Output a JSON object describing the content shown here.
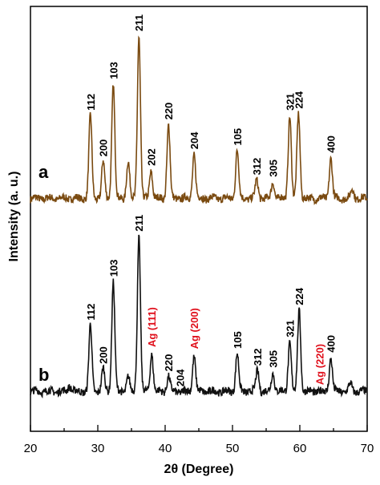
{
  "chart_data": {
    "type": "line",
    "title": "",
    "xlabel": "2θ (Degree)",
    "ylabel": "Intensity (a. u.)",
    "xlim": [
      20,
      70
    ],
    "x_ticks": [
      "20",
      "30",
      "40",
      "50",
      "60",
      "70"
    ],
    "y_ticks_shown": false,
    "legend": "none",
    "series": [
      {
        "name": "a",
        "color": "#7a4a10",
        "baseline": 0.12,
        "peaks": [
          {
            "x": 28.9,
            "h": 0.45
          },
          {
            "x": 30.8,
            "h": 0.2
          },
          {
            "x": 32.3,
            "h": 0.62
          },
          {
            "x": 34.5,
            "h": 0.2
          },
          {
            "x": 36.1,
            "h": 0.88
          },
          {
            "x": 37.9,
            "h": 0.15
          },
          {
            "x": 40.5,
            "h": 0.4
          },
          {
            "x": 44.3,
            "h": 0.24
          },
          {
            "x": 50.7,
            "h": 0.26
          },
          {
            "x": 53.6,
            "h": 0.1
          },
          {
            "x": 56.0,
            "h": 0.09
          },
          {
            "x": 58.5,
            "h": 0.45
          },
          {
            "x": 59.8,
            "h": 0.46
          },
          {
            "x": 64.6,
            "h": 0.22
          },
          {
            "x": 67.8,
            "h": 0.05
          }
        ],
        "peak_labels": [
          {
            "text": "112",
            "x": 28.9
          },
          {
            "text": "200",
            "x": 30.8
          },
          {
            "text": "103",
            "x": 32.3
          },
          {
            "text": "211",
            "x": 36.1
          },
          {
            "text": "202",
            "x": 37.9
          },
          {
            "text": "220",
            "x": 40.5
          },
          {
            "text": "204",
            "x": 44.3
          },
          {
            "text": "105",
            "x": 50.7
          },
          {
            "text": "312",
            "x": 53.6
          },
          {
            "text": "305",
            "x": 56.0
          },
          {
            "text": "321",
            "x": 58.5
          },
          {
            "text": "224",
            "x": 59.8
          },
          {
            "text": "400",
            "x": 64.6
          }
        ]
      },
      {
        "name": "b",
        "color": "#111111",
        "baseline": 0.05,
        "peaks": [
          {
            "x": 25.8,
            "h": 0.03
          },
          {
            "x": 28.9,
            "h": 0.35
          },
          {
            "x": 30.8,
            "h": 0.12
          },
          {
            "x": 32.3,
            "h": 0.58
          },
          {
            "x": 34.5,
            "h": 0.08
          },
          {
            "x": 36.1,
            "h": 0.82
          },
          {
            "x": 38.0,
            "h": 0.2
          },
          {
            "x": 40.5,
            "h": 0.08
          },
          {
            "x": 44.3,
            "h": 0.19
          },
          {
            "x": 50.7,
            "h": 0.2
          },
          {
            "x": 53.7,
            "h": 0.11
          },
          {
            "x": 56.0,
            "h": 0.1
          },
          {
            "x": 58.5,
            "h": 0.26
          },
          {
            "x": 59.9,
            "h": 0.43
          },
          {
            "x": 64.6,
            "h": 0.18
          },
          {
            "x": 67.5,
            "h": 0.04
          }
        ],
        "peak_labels": [
          {
            "text": "112",
            "x": 28.9,
            "color": "#000000"
          },
          {
            "text": "200",
            "x": 30.8,
            "color": "#000000"
          },
          {
            "text": "103",
            "x": 32.3,
            "color": "#000000"
          },
          {
            "text": "211",
            "x": 36.1,
            "color": "#000000"
          },
          {
            "text": "Ag (111)",
            "x": 38.0,
            "color": "#e0101c"
          },
          {
            "text": "220",
            "x": 40.5,
            "color": "#000000"
          },
          {
            "text": "204",
            "x": 42.2,
            "color": "#000000"
          },
          {
            "text": "Ag (200)",
            "x": 44.3,
            "color": "#e0101c"
          },
          {
            "text": "105",
            "x": 50.7,
            "color": "#000000"
          },
          {
            "text": "312",
            "x": 53.7,
            "color": "#000000"
          },
          {
            "text": "305",
            "x": 56.0,
            "color": "#000000"
          },
          {
            "text": "321",
            "x": 58.5,
            "color": "#000000"
          },
          {
            "text": "224",
            "x": 59.9,
            "color": "#000000"
          },
          {
            "text": "Ag (220)",
            "x": 62.9,
            "color": "#e0101c"
          },
          {
            "text": "400",
            "x": 64.6,
            "color": "#000000"
          }
        ]
      }
    ]
  }
}
